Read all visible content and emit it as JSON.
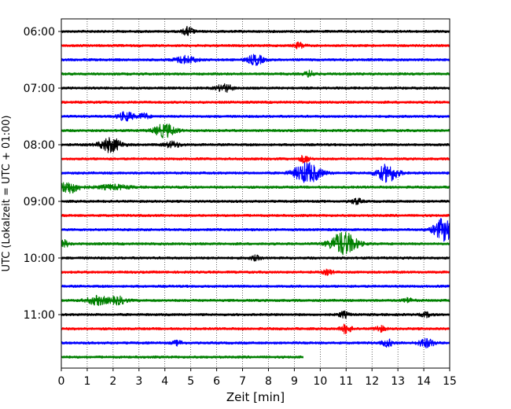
{
  "chart_data": {
    "type": "line",
    "title": "",
    "xlabel": "Zeit  [min]",
    "ylabel": "UTC (Lokalzeit = UTC + 01:00)",
    "xlim": [
      0,
      15
    ],
    "x_ticks": [
      "0",
      "1",
      "2",
      "3",
      "4",
      "5",
      "6",
      "7",
      "8",
      "9",
      "10",
      "11",
      "12",
      "13",
      "14",
      "15"
    ],
    "y_ticks": [
      "06:00",
      "07:00",
      "08:00",
      "09:00",
      "10:00",
      "11:00"
    ],
    "grid": "vertical dotted lines at each minute",
    "trace_interval_min": 15,
    "colors": [
      "#000000",
      "#ff0000",
      "#0000ff",
      "#008000"
    ],
    "traces": [
      {
        "start": "06:00",
        "color": "#000000",
        "end_min": 15,
        "events": [
          [
            4.9,
            0.6,
            0.2
          ]
        ]
      },
      {
        "start": "06:15",
        "color": "#ff0000",
        "end_min": 15,
        "events": [
          [
            9.2,
            0.4,
            0.2
          ]
        ]
      },
      {
        "start": "06:30",
        "color": "#0000ff",
        "end_min": 15,
        "events": [
          [
            4.8,
            0.5,
            0.4
          ],
          [
            7.5,
            0.7,
            0.3
          ]
        ]
      },
      {
        "start": "06:45",
        "color": "#008000",
        "end_min": 15,
        "events": [
          [
            9.6,
            0.4,
            0.2
          ]
        ]
      },
      {
        "start": "07:00",
        "color": "#000000",
        "end_min": 15,
        "events": [
          [
            6.3,
            0.5,
            0.3
          ]
        ]
      },
      {
        "start": "07:15",
        "color": "#ff0000",
        "end_min": 15,
        "events": []
      },
      {
        "start": "07:30",
        "color": "#0000ff",
        "end_min": 15,
        "events": [
          [
            2.5,
            0.6,
            0.3
          ],
          [
            3.2,
            0.4,
            0.2
          ]
        ]
      },
      {
        "start": "07:45",
        "color": "#008000",
        "end_min": 15,
        "events": [
          [
            4.0,
            0.9,
            0.4
          ]
        ]
      },
      {
        "start": "08:00",
        "color": "#000000",
        "end_min": 15,
        "events": [
          [
            1.9,
            1.0,
            0.4
          ],
          [
            4.3,
            0.4,
            0.3
          ]
        ]
      },
      {
        "start": "08:15",
        "color": "#ff0000",
        "end_min": 15,
        "events": [
          [
            9.4,
            0.5,
            0.2
          ]
        ]
      },
      {
        "start": "08:30",
        "color": "#0000ff",
        "end_min": 15,
        "events": [
          [
            9.5,
            1.4,
            0.5
          ],
          [
            12.6,
            1.2,
            0.4
          ]
        ]
      },
      {
        "start": "08:45",
        "color": "#008000",
        "end_min": 15,
        "events": [
          [
            0.3,
            0.8,
            0.4
          ],
          [
            2.0,
            0.3,
            0.6
          ]
        ]
      },
      {
        "start": "09:00",
        "color": "#000000",
        "end_min": 15,
        "events": [
          [
            11.4,
            0.4,
            0.2
          ]
        ]
      },
      {
        "start": "09:15",
        "color": "#ff0000",
        "end_min": 15,
        "events": []
      },
      {
        "start": "09:30",
        "color": "#0000ff",
        "end_min": 15,
        "events": [
          [
            14.8,
            1.6,
            0.4
          ]
        ]
      },
      {
        "start": "09:45",
        "color": "#008000",
        "end_min": 15,
        "events": [
          [
            10.9,
            1.6,
            0.5
          ],
          [
            0.1,
            0.5,
            0.2
          ]
        ]
      },
      {
        "start": "10:00",
        "color": "#000000",
        "end_min": 15,
        "events": [
          [
            7.5,
            0.3,
            0.2
          ]
        ]
      },
      {
        "start": "10:15",
        "color": "#ff0000",
        "end_min": 15,
        "events": [
          [
            10.3,
            0.3,
            0.2
          ]
        ]
      },
      {
        "start": "10:30",
        "color": "#0000ff",
        "end_min": 15,
        "events": []
      },
      {
        "start": "10:45",
        "color": "#008000",
        "end_min": 15,
        "events": [
          [
            1.4,
            0.6,
            0.4
          ],
          [
            2.2,
            0.5,
            0.3
          ],
          [
            13.4,
            0.3,
            0.2
          ]
        ]
      },
      {
        "start": "11:00",
        "color": "#000000",
        "end_min": 15,
        "events": [
          [
            10.9,
            0.4,
            0.2
          ],
          [
            14.1,
            0.3,
            0.2
          ]
        ]
      },
      {
        "start": "11:15",
        "color": "#ff0000",
        "end_min": 15,
        "events": [
          [
            11.0,
            0.6,
            0.2
          ],
          [
            12.3,
            0.4,
            0.2
          ]
        ]
      },
      {
        "start": "11:30",
        "color": "#0000ff",
        "end_min": 15,
        "events": [
          [
            4.5,
            0.3,
            0.2
          ],
          [
            12.6,
            0.5,
            0.2
          ],
          [
            14.1,
            0.6,
            0.3
          ]
        ]
      },
      {
        "start": "11:45",
        "color": "#008000",
        "end_min": 9.35,
        "events": []
      }
    ]
  }
}
